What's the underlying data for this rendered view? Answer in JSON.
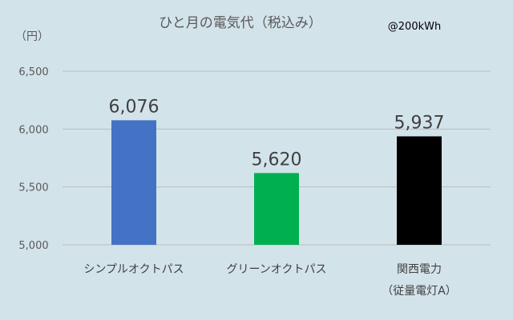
{
  "chart_data": {
    "type": "bar",
    "title": "ひと月の電気代（税込み）",
    "annotation": "@200kWh",
    "ylabel": "（円）",
    "ylim": [
      5000,
      6500
    ],
    "yticks": [
      5000,
      5500,
      6000,
      6500
    ],
    "ytick_labels": [
      "5,000",
      "5,500",
      "6,000",
      "6,500"
    ],
    "categories": [
      [
        "シンプルオクトパス"
      ],
      [
        "グリーンオクトパス"
      ],
      [
        "関西電力",
        "（従量電灯A）"
      ]
    ],
    "values": [
      6076,
      5620,
      5937
    ],
    "value_labels": [
      "6,076",
      "5,620",
      "5,937"
    ],
    "colors": [
      "#4472c4",
      "#00b050",
      "#000000"
    ],
    "grid": true
  }
}
